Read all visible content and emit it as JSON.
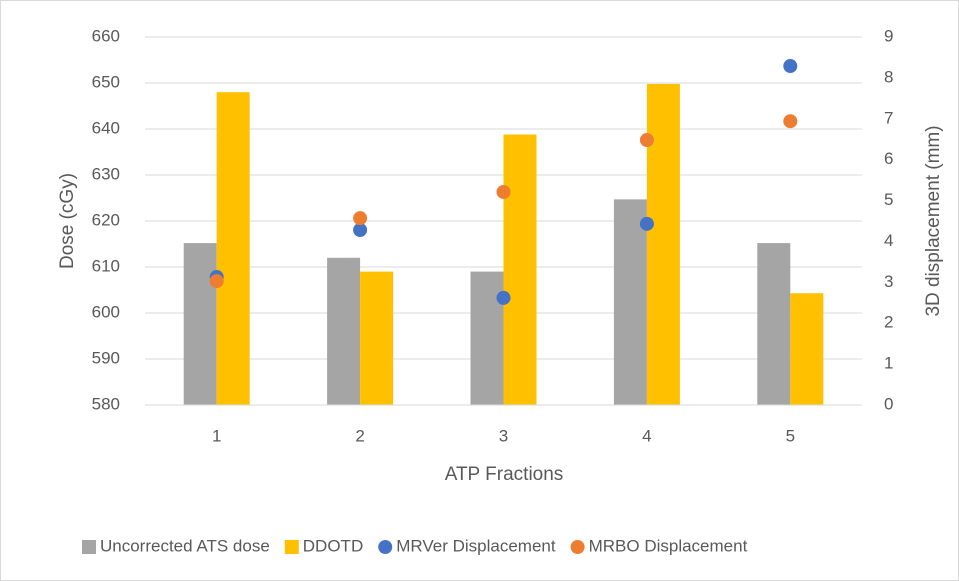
{
  "chart_data": {
    "type": "bar",
    "categories": [
      "1",
      "2",
      "3",
      "4",
      "5"
    ],
    "xlabel": "ATP Fractions",
    "ylabel": "Dose (cGy)",
    "y2label": "3D displacement (mm)",
    "ylim": [
      580,
      660
    ],
    "yticks": [
      580,
      590,
      600,
      610,
      620,
      630,
      640,
      650,
      660
    ],
    "y2lim": [
      0,
      9
    ],
    "y2ticks": [
      0,
      1,
      2,
      3,
      4,
      5,
      6,
      7,
      8,
      9
    ],
    "grid": true,
    "legend": "bottom",
    "series": [
      {
        "name": "Uncorrected ATS dose",
        "type": "bar",
        "color": "#a5a5a5",
        "values": [
          615.2,
          612,
          609,
          624.7,
          615.2
        ]
      },
      {
        "name": "DDOTD",
        "type": "bar",
        "color": "#ffc000",
        "values": [
          648,
          609,
          638.8,
          649.8,
          604.3
        ]
      },
      {
        "name": "MRVer Displacement",
        "type": "scatter",
        "axis": "y2",
        "color": "#4472c4",
        "values": [
          3.13,
          4.28,
          2.62,
          4.43,
          8.29
        ]
      },
      {
        "name": "MRBO Displacement",
        "type": "scatter",
        "axis": "y2",
        "color": "#ed7d31",
        "values": [
          3.03,
          4.57,
          5.21,
          6.48,
          6.94
        ]
      }
    ]
  }
}
